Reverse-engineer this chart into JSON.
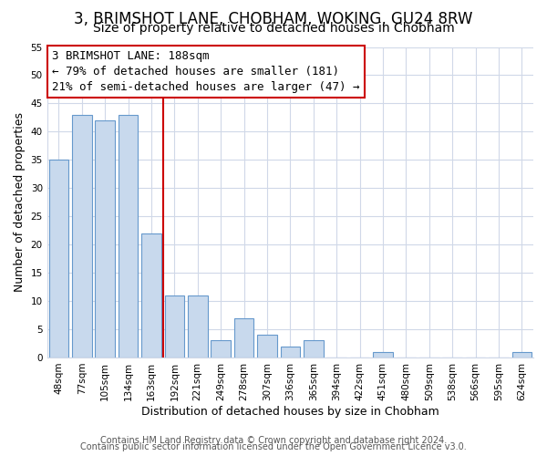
{
  "title": "3, BRIMSHOT LANE, CHOBHAM, WOKING, GU24 8RW",
  "subtitle": "Size of property relative to detached houses in Chobham",
  "xlabel": "Distribution of detached houses by size in Chobham",
  "ylabel": "Number of detached properties",
  "bar_labels": [
    "48sqm",
    "77sqm",
    "105sqm",
    "134sqm",
    "163sqm",
    "192sqm",
    "221sqm",
    "249sqm",
    "278sqm",
    "307sqm",
    "336sqm",
    "365sqm",
    "394sqm",
    "422sqm",
    "451sqm",
    "480sqm",
    "509sqm",
    "538sqm",
    "566sqm",
    "595sqm",
    "624sqm"
  ],
  "bar_values": [
    35,
    43,
    42,
    43,
    22,
    11,
    11,
    3,
    7,
    4,
    2,
    3,
    0,
    0,
    1,
    0,
    0,
    0,
    0,
    0,
    1
  ],
  "bar_color": "#c8d9ed",
  "bar_edge_color": "#6699cc",
  "annotation_line_color": "#cc0000",
  "annotation_box_edge_color": "#cc0000",
  "annotation_box_text_line1": "3 BRIMSHOT LANE: 188sqm",
  "annotation_box_text_line2": "← 79% of detached houses are smaller (181)",
  "annotation_box_text_line3": "21% of semi-detached houses are larger (47) →",
  "ylim": [
    0,
    55
  ],
  "yticks": [
    0,
    5,
    10,
    15,
    20,
    25,
    30,
    35,
    40,
    45,
    50,
    55
  ],
  "footer_line1": "Contains HM Land Registry data © Crown copyright and database right 2024.",
  "footer_line2": "Contains public sector information licensed under the Open Government Licence v3.0.",
  "background_color": "#ffffff",
  "plot_bg_color": "#ffffff",
  "grid_color": "#d0d8e8",
  "title_fontsize": 12,
  "subtitle_fontsize": 10,
  "axis_label_fontsize": 9,
  "tick_fontsize": 7.5,
  "footer_fontsize": 7,
  "annotation_fontsize": 9
}
